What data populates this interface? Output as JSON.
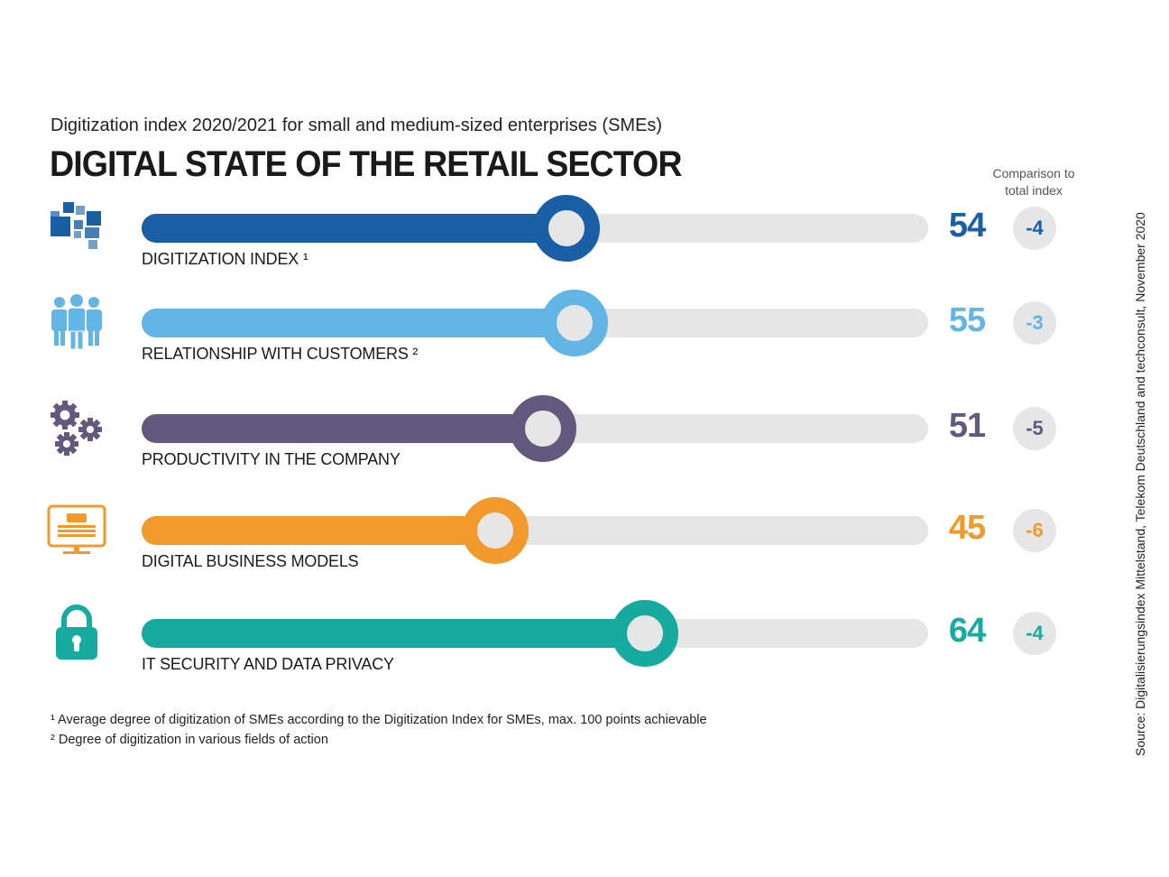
{
  "subtitle": "Digitization index 2020/2021 for small and medium-sized enterprises (SMEs)",
  "title": "DIGITAL STATE OF THE RETAIL SECTOR",
  "comparison_header": [
    "Comparison to",
    "total index"
  ],
  "chart_data": {
    "type": "bar",
    "orientation": "horizontal",
    "title": "DIGITAL STATE OF THE RETAIL SECTOR",
    "subtitle": "Digitization index 2020/2021 for small and medium-sized enterprises (SMEs)",
    "xlim": [
      0,
      100
    ],
    "categories": [
      "DIGITIZATION INDEX ¹",
      "RELATIONSHIP WITH CUSTOMERS ²",
      "PRODUCTIVITY IN THE COMPANY",
      "DIGITAL BUSINESS MODELS",
      "IT SECURITY AND DATA PRIVACY"
    ],
    "values": [
      54,
      55,
      51,
      45,
      64
    ],
    "comparison_to_total_index": [
      "-4",
      "-3",
      "-5",
      "-6",
      "-4"
    ],
    "value_labels": [
      "54",
      "55",
      "51",
      "45",
      "64"
    ],
    "colors": [
      "#1a5ea6",
      "#62b5e5",
      "#65587f",
      "#f19a2b",
      "#16aaa0"
    ],
    "icons": [
      "blocks-icon",
      "people-icon",
      "gears-icon",
      "monitor-icon",
      "lock-icon"
    ]
  },
  "footnotes": [
    "¹ Average degree of digitization of SMEs according to the Digitization Index for SMEs, max. 100 points achievable",
    "² Degree of digitization in various fields of action"
  ],
  "source": "Source: Digitalisierungsindex Mittelstand, Telekom Deutschland and techconsult, November 2020"
}
